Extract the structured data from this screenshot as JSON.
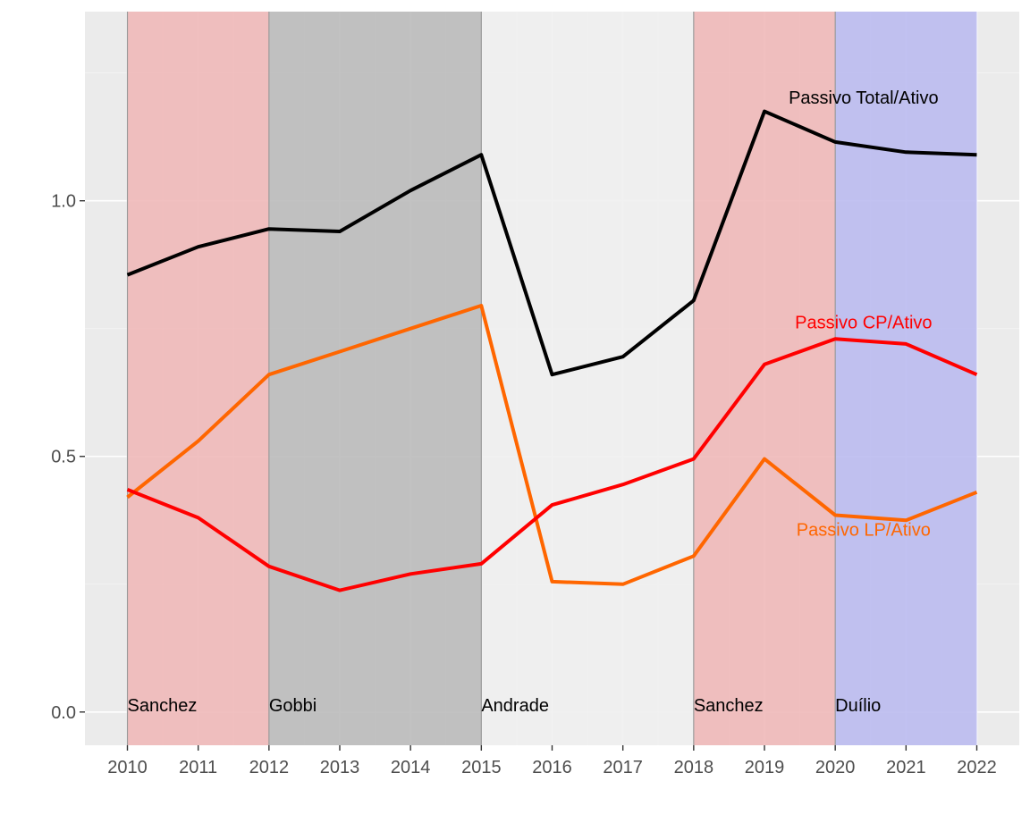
{
  "chart_data": {
    "type": "line",
    "title": "",
    "xlabel": "",
    "ylabel": "",
    "x": [
      2010,
      2011,
      2012,
      2013,
      2014,
      2015,
      2016,
      2017,
      2018,
      2019,
      2020,
      2021,
      2022
    ],
    "x_ticks": [
      "2010",
      "2011",
      "2012",
      "2013",
      "2014",
      "2015",
      "2016",
      "2017",
      "2018",
      "2019",
      "2020",
      "2021",
      "2022"
    ],
    "xlim": [
      2009.4,
      2022.6
    ],
    "ylim": [
      -0.065,
      1.37
    ],
    "y_ticks": [
      {
        "value": 0.0,
        "label": "0.0"
      },
      {
        "value": 0.5,
        "label": "0.5"
      },
      {
        "value": 1.0,
        "label": "1.0"
      }
    ],
    "grid": true,
    "panel_color": "#ebebeb",
    "periods": [
      {
        "label": "Sanchez",
        "start": 2010,
        "end": 2012,
        "color": "#f0b9b9"
      },
      {
        "label": "Gobbi",
        "start": 2012,
        "end": 2015,
        "color": "#bbbbbb"
      },
      {
        "label": "Andrade",
        "start": 2015,
        "end": 2018,
        "color": "#f0f0f0"
      },
      {
        "label": "Sanchez",
        "start": 2018,
        "end": 2020,
        "color": "#f0b9b9"
      },
      {
        "label": "Duílio",
        "start": 2020,
        "end": 2022,
        "color": "#bbbbf0"
      }
    ],
    "series": [
      {
        "name": "Passivo Total/Ativo",
        "color": "#000000",
        "label_x": 2020.4,
        "label_y": 1.19,
        "values": [
          0.855,
          0.91,
          0.945,
          0.94,
          1.02,
          1.09,
          0.66,
          0.695,
          0.805,
          1.175,
          1.115,
          1.095,
          1.09
        ]
      },
      {
        "name": "Passivo CP/Ativo",
        "color": "#ff0000",
        "label_x": 2020.4,
        "label_y": 0.75,
        "values": [
          0.435,
          0.38,
          0.285,
          0.238,
          0.27,
          0.29,
          0.405,
          0.445,
          0.495,
          0.68,
          0.73,
          0.72,
          0.66
        ]
      },
      {
        "name": "Passivo LP/Ativo",
        "color": "#ff6600",
        "label_x": 2020.4,
        "label_y": 0.345,
        "values": [
          0.42,
          0.53,
          0.66,
          0.705,
          0.75,
          0.795,
          0.255,
          0.25,
          0.305,
          0.495,
          0.385,
          0.375,
          0.43
        ]
      }
    ]
  }
}
